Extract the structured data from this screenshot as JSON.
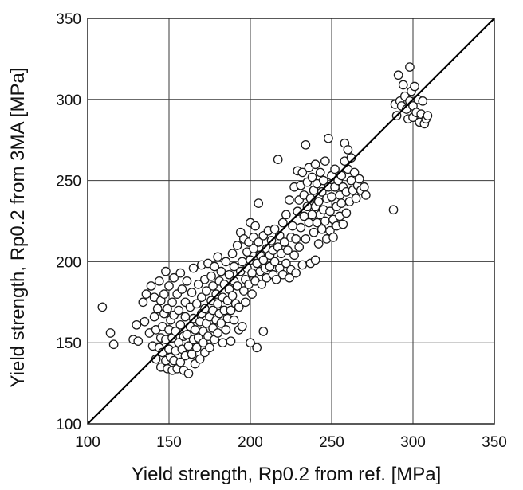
{
  "chart_data": {
    "type": "scatter",
    "xlabel": "Yield strength, Rp0.2 from ref. [MPa]",
    "ylabel": "Yield strength, Rp0.2 from 3MA [MPa]",
    "xlim": [
      100,
      350
    ],
    "ylim": [
      100,
      350
    ],
    "xticks": [
      "100",
      "150",
      "200",
      "250",
      "300",
      "350"
    ],
    "yticks": [
      "100",
      "150",
      "200",
      "250",
      "300",
      "350"
    ],
    "grid": true,
    "reference_line": {
      "x": [
        100,
        350
      ],
      "y": [
        100,
        350
      ]
    },
    "marker": {
      "shape": "open-circle",
      "stroke": "#1a1a1a",
      "fill": "#ffffff"
    },
    "line_color": "#000000",
    "grid_color": "#3a3a3a",
    "series": [
      {
        "points": [
          [
            109,
            172
          ],
          [
            114,
            156
          ],
          [
            116,
            149
          ],
          [
            128,
            152
          ],
          [
            130,
            161
          ],
          [
            131,
            151
          ],
          [
            134,
            175
          ],
          [
            135,
            163
          ],
          [
            136,
            180
          ],
          [
            138,
            156
          ],
          [
            139,
            185
          ],
          [
            140,
            148
          ],
          [
            141,
            166
          ],
          [
            141,
            178
          ],
          [
            142,
            140
          ],
          [
            142,
            158
          ],
          [
            143,
            171
          ],
          [
            144,
            147
          ],
          [
            144,
            188
          ],
          [
            145,
            135
          ],
          [
            145,
            153
          ],
          [
            145,
            176
          ],
          [
            146,
            160
          ],
          [
            146,
            144
          ],
          [
            147,
            168
          ],
          [
            147,
            180
          ],
          [
            148,
            139
          ],
          [
            148,
            152
          ],
          [
            148,
            194
          ],
          [
            149,
            134
          ],
          [
            149,
            171
          ],
          [
            150,
            158
          ],
          [
            150,
            146
          ],
          [
            150,
            185
          ],
          [
            151,
            141
          ],
          [
            151,
            164
          ],
          [
            152,
            133
          ],
          [
            152,
            175
          ],
          [
            152,
            153
          ],
          [
            153,
            139
          ],
          [
            153,
            167
          ],
          [
            153,
            190
          ],
          [
            154,
            145
          ],
          [
            154,
            157
          ],
          [
            155,
            134
          ],
          [
            155,
            180
          ],
          [
            156,
            150
          ],
          [
            156,
            170
          ],
          [
            157,
            138
          ],
          [
            157,
            161
          ],
          [
            157,
            193
          ],
          [
            158,
            146
          ],
          [
            158,
            183
          ],
          [
            159,
            154
          ],
          [
            159,
            133
          ],
          [
            160,
            166
          ],
          [
            160,
            175
          ],
          [
            160,
            142
          ],
          [
            161,
            155
          ],
          [
            161,
            188
          ],
          [
            162,
            131
          ],
          [
            162,
            148
          ],
          [
            163,
            160
          ],
          [
            163,
            172
          ],
          [
            164,
            143
          ],
          [
            164,
            181
          ],
          [
            165,
            152
          ],
          [
            165,
            165
          ],
          [
            165,
            196
          ],
          [
            166,
            137
          ],
          [
            166,
            158
          ],
          [
            167,
            174
          ],
          [
            167,
            147
          ],
          [
            168,
            186
          ],
          [
            168,
            153
          ],
          [
            169,
            163
          ],
          [
            169,
            140
          ],
          [
            170,
            178
          ],
          [
            170,
            168
          ],
          [
            170,
            198
          ],
          [
            171,
            150
          ],
          [
            171,
            157
          ],
          [
            172,
            144
          ],
          [
            172,
            189
          ],
          [
            172,
            171
          ],
          [
            173,
            162
          ],
          [
            173,
            182
          ],
          [
            174,
            154
          ],
          [
            174,
            199
          ],
          [
            175,
            166
          ],
          [
            175,
            147
          ],
          [
            176,
            176
          ],
          [
            176,
            191
          ],
          [
            177,
            159
          ],
          [
            177,
            185
          ],
          [
            177,
            170
          ],
          [
            178,
            152
          ],
          [
            178,
            197
          ],
          [
            179,
            180
          ],
          [
            179,
            164
          ],
          [
            180,
            174
          ],
          [
            180,
            156
          ],
          [
            180,
            203
          ],
          [
            181,
            188
          ],
          [
            181,
            168
          ],
          [
            182,
            162
          ],
          [
            182,
            194
          ],
          [
            183,
            178
          ],
          [
            183,
            150
          ],
          [
            184,
            186
          ],
          [
            184,
            170
          ],
          [
            185,
            158
          ],
          [
            185,
            200
          ],
          [
            186,
            176
          ],
          [
            186,
            165
          ],
          [
            187,
            192
          ],
          [
            187,
            183
          ],
          [
            188,
            170
          ],
          [
            188,
            151
          ],
          [
            189,
            205
          ],
          [
            189,
            179
          ],
          [
            190,
            188
          ],
          [
            190,
            164
          ],
          [
            190,
            197
          ],
          [
            191,
            174
          ],
          [
            192,
            210
          ],
          [
            192,
            185
          ],
          [
            193,
            158
          ],
          [
            193,
            172
          ],
          [
            194,
            218
          ],
          [
            194,
            194
          ],
          [
            195,
            160
          ],
          [
            195,
            200
          ],
          [
            196,
            182
          ],
          [
            196,
            214
          ],
          [
            197,
            189
          ],
          [
            197,
            175
          ],
          [
            198,
            206
          ],
          [
            198,
            196
          ],
          [
            199,
            212
          ],
          [
            199,
            186
          ],
          [
            200,
            224
          ],
          [
            200,
            150
          ],
          [
            200,
            201
          ],
          [
            201,
            193
          ],
          [
            201,
            180
          ],
          [
            202,
            215
          ],
          [
            202,
            208
          ],
          [
            203,
            222
          ],
          [
            203,
            188
          ],
          [
            204,
            199
          ],
          [
            204,
            147
          ],
          [
            205,
            236
          ],
          [
            205,
            212
          ],
          [
            206,
            194
          ],
          [
            206,
            204
          ],
          [
            207,
            186
          ],
          [
            208,
            216
          ],
          [
            208,
            201
          ],
          [
            208,
            157
          ],
          [
            209,
            196
          ],
          [
            210,
            208
          ],
          [
            210,
            190
          ],
          [
            211,
            219
          ],
          [
            212,
            204
          ],
          [
            212,
            197
          ],
          [
            213,
            213
          ],
          [
            214,
            192
          ],
          [
            214,
            207
          ],
          [
            215,
            220
          ],
          [
            215,
            200
          ],
          [
            216,
            189
          ],
          [
            217,
            263
          ],
          [
            217,
            209
          ],
          [
            218,
            196
          ],
          [
            218,
            216
          ],
          [
            219,
            205
          ],
          [
            220,
            224
          ],
          [
            220,
            192
          ],
          [
            221,
            212
          ],
          [
            222,
            199
          ],
          [
            222,
            229
          ],
          [
            223,
            207
          ],
          [
            224,
            190
          ],
          [
            224,
            238
          ],
          [
            225,
            215
          ],
          [
            225,
            195
          ],
          [
            226,
            222
          ],
          [
            227,
            204
          ],
          [
            227,
            246
          ],
          [
            228,
            193
          ],
          [
            228,
            214
          ],
          [
            229,
            231
          ],
          [
            229,
            256
          ],
          [
            230,
            209
          ],
          [
            230,
            238
          ],
          [
            231,
            221
          ],
          [
            231,
            247
          ],
          [
            232,
            198
          ],
          [
            232,
            255
          ],
          [
            233,
            228
          ],
          [
            233,
            241
          ],
          [
            234,
            272
          ],
          [
            234,
            214
          ],
          [
            235,
            234
          ],
          [
            235,
            249
          ],
          [
            236,
            224
          ],
          [
            236,
            258
          ],
          [
            237,
            239
          ],
          [
            237,
            199
          ],
          [
            238,
            229
          ],
          [
            238,
            252
          ],
          [
            239,
            218
          ],
          [
            239,
            244
          ],
          [
            240,
            234
          ],
          [
            240,
            260
          ],
          [
            240,
            201
          ],
          [
            241,
            224
          ],
          [
            241,
            248
          ],
          [
            242,
            237
          ],
          [
            242,
            211
          ],
          [
            243,
            255
          ],
          [
            243,
            229
          ],
          [
            244,
            243
          ],
          [
            244,
            220
          ],
          [
            245,
            250
          ],
          [
            245,
            232
          ],
          [
            246,
            225
          ],
          [
            246,
            262
          ],
          [
            247,
            239
          ],
          [
            247,
            214
          ],
          [
            248,
            276
          ],
          [
            248,
            246
          ],
          [
            249,
            231
          ],
          [
            249,
            219
          ],
          [
            250,
            253
          ],
          [
            250,
            240
          ],
          [
            251,
            226
          ],
          [
            251,
            215
          ],
          [
            252,
            246
          ],
          [
            252,
            257
          ],
          [
            253,
            234
          ],
          [
            253,
            222
          ],
          [
            254,
            250
          ],
          [
            255,
            241
          ],
          [
            255,
            228
          ],
          [
            256,
            253
          ],
          [
            256,
            236
          ],
          [
            257,
            246
          ],
          [
            257,
            223
          ],
          [
            258,
            262
          ],
          [
            258,
            273
          ],
          [
            259,
            243
          ],
          [
            259,
            230
          ],
          [
            260,
            257
          ],
          [
            260,
            269
          ],
          [
            261,
            237
          ],
          [
            262,
            250
          ],
          [
            262,
            264
          ],
          [
            263,
            244
          ],
          [
            264,
            255
          ],
          [
            265,
            239
          ],
          [
            266,
            247
          ],
          [
            267,
            251
          ],
          [
            268,
            244
          ],
          [
            270,
            246
          ],
          [
            271,
            241
          ],
          [
            288,
            232
          ],
          [
            289,
            297
          ],
          [
            290,
            290
          ],
          [
            291,
            315
          ],
          [
            292,
            299
          ],
          [
            293,
            296
          ],
          [
            294,
            309
          ],
          [
            295,
            302
          ],
          [
            296,
            294
          ],
          [
            297,
            288
          ],
          [
            298,
            320
          ],
          [
            298,
            299
          ],
          [
            299,
            305
          ],
          [
            300,
            296
          ],
          [
            300,
            289
          ],
          [
            301,
            308
          ],
          [
            302,
            292
          ],
          [
            303,
            300
          ],
          [
            304,
            286
          ],
          [
            305,
            291
          ],
          [
            306,
            299
          ],
          [
            307,
            285
          ],
          [
            308,
            288
          ],
          [
            309,
            290
          ]
        ]
      }
    ]
  }
}
